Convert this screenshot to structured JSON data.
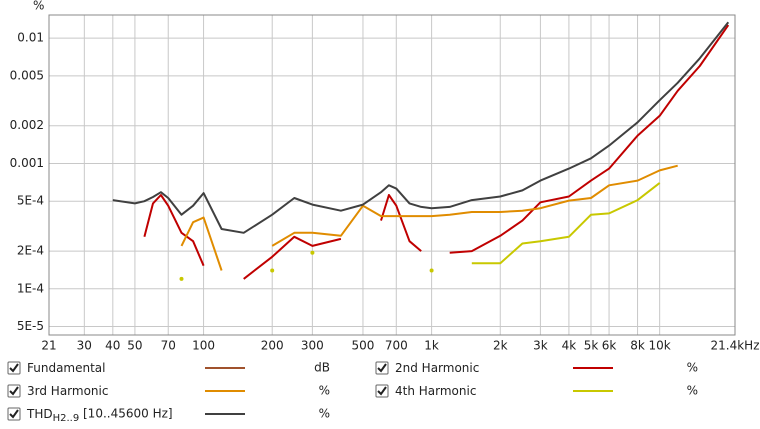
{
  "chart_data": {
    "type": "line",
    "log_x": true,
    "log_y": true,
    "grid": true,
    "y_unit": "%",
    "xlim": [
      21,
      21400
    ],
    "ylim": [
      4.28e-05,
      0.0153
    ],
    "xticks": [
      21,
      30,
      40,
      50,
      70,
      100,
      200,
      300,
      500,
      700,
      {
        "value": 1000,
        "label": "1k"
      },
      {
        "value": 2000,
        "label": "2k"
      },
      {
        "value": 3000,
        "label": "3k"
      },
      {
        "value": 4000,
        "label": "4k"
      },
      {
        "value": 5000,
        "label": "5k"
      },
      {
        "value": 6000,
        "label": "6k"
      },
      {
        "value": 8000,
        "label": "8k"
      },
      {
        "value": 10000,
        "label": "10k"
      },
      {
        "value": 21400,
        "label": "21.4kHz"
      }
    ],
    "yticks": [
      0.01,
      0.005,
      0.002,
      0.001,
      {
        "value": 0.0005,
        "label": "5E-4"
      },
      {
        "value": 0.0002,
        "label": "2E-4"
      },
      {
        "value": 0.0001,
        "label": "1E-4"
      },
      {
        "value": 5e-05,
        "label": "5E-5"
      }
    ],
    "x": [
      40,
      50,
      55,
      60,
      65,
      70,
      80,
      90,
      100,
      120,
      150,
      200,
      250,
      300,
      400,
      500,
      600,
      650,
      700,
      800,
      900,
      1000,
      1200,
      1500,
      2000,
      2500,
      3000,
      4000,
      5000,
      6000,
      8000,
      10000,
      12000,
      15000,
      20000
    ],
    "series": [
      {
        "name": "Fundamental",
        "unit": "dB",
        "color": "#a0522d"
      },
      {
        "name": "2nd Harmonic",
        "unit": "%",
        "color": "#c00000",
        "values": [
          null,
          null,
          0.00026,
          0.00048,
          0.00056,
          0.00046,
          0.00028,
          0.00024,
          0.000153,
          null,
          0.00012,
          0.00018,
          0.00026,
          0.00022,
          0.00025,
          null,
          0.00035,
          0.00056,
          0.00046,
          0.00024,
          0.0002,
          null,
          0.000194,
          0.0002,
          0.000265,
          0.00035,
          0.00049,
          0.000545,
          0.00073,
          0.00091,
          0.00167,
          0.0024,
          0.0038,
          0.006,
          0.0127
        ]
      },
      {
        "name": "3rd Harmonic",
        "unit": "%",
        "color": "#e08c00",
        "values": [
          null,
          null,
          null,
          null,
          null,
          null,
          0.00022,
          0.00034,
          0.00037,
          0.00014,
          null,
          0.00022,
          0.00028,
          0.00028,
          0.000265,
          0.00046,
          0.00038,
          0.00038,
          0.00038,
          0.00038,
          0.00038,
          0.00038,
          0.00039,
          0.00041,
          0.00041,
          0.00042,
          0.00044,
          0.000506,
          0.00053,
          0.00067,
          0.00073,
          0.00088,
          0.00096,
          null,
          null
        ]
      },
      {
        "name": "4th Harmonic",
        "unit": "%",
        "color": "#c8c800",
        "values": [
          null,
          null,
          null,
          null,
          null,
          null,
          0.00012,
          null,
          null,
          null,
          null,
          0.00014,
          null,
          0.000194,
          null,
          null,
          null,
          null,
          null,
          null,
          null,
          0.00014,
          null,
          0.00016,
          0.00016,
          0.00023,
          0.00024,
          0.00026,
          0.00039,
          0.0004,
          0.00051,
          0.0007,
          null,
          null,
          null
        ]
      },
      {
        "name": "THD",
        "name_sub": "H2..9",
        "range": "[10..45600 Hz]",
        "unit": "%",
        "color": "#404040",
        "values": [
          0.00051,
          0.00048,
          0.0005,
          0.00054,
          0.00059,
          0.00053,
          0.00039,
          0.00046,
          0.00058,
          0.0003,
          0.00028,
          0.00039,
          0.00053,
          0.00047,
          0.00042,
          0.00047,
          0.00059,
          0.00067,
          0.00063,
          0.00048,
          0.00045,
          0.00044,
          0.00045,
          0.00051,
          0.000545,
          0.00061,
          0.00073,
          0.00091,
          0.0011,
          0.00139,
          0.00213,
          0.0032,
          0.0044,
          0.0069,
          0.0134
        ]
      }
    ]
  }
}
